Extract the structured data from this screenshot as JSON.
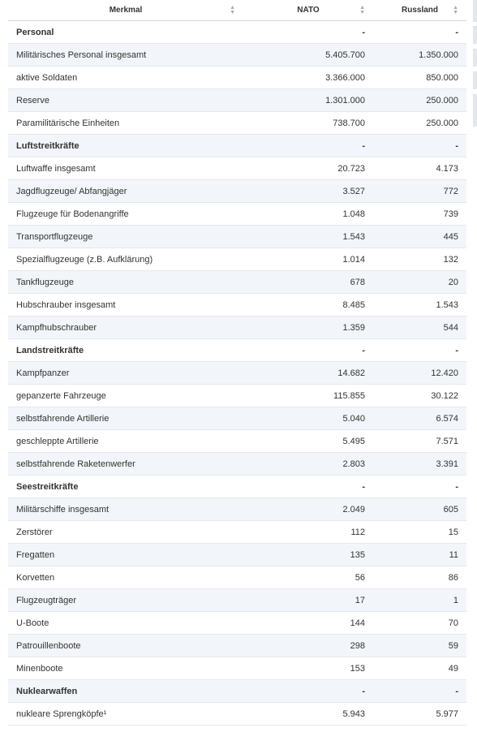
{
  "table": {
    "headers": [
      "Merkmal",
      "NATO",
      "Russland"
    ],
    "rows": [
      {
        "label": "Personal",
        "nato": "-",
        "russland": "-",
        "section": true
      },
      {
        "label": "Militärisches Personal insgesamt",
        "nato": "5.405.700",
        "russland": "1.350.000"
      },
      {
        "label": "aktive Soldaten",
        "nato": "3.366.000",
        "russland": "850.000"
      },
      {
        "label": "Reserve",
        "nato": "1.301.000",
        "russland": "250.000"
      },
      {
        "label": "Paramilitärische Einheiten",
        "nato": "738.700",
        "russland": "250.000"
      },
      {
        "label": "Luftstreitkräfte",
        "nato": "-",
        "russland": "-",
        "section": true
      },
      {
        "label": "Luftwaffe insgesamt",
        "nato": "20.723",
        "russland": "4.173"
      },
      {
        "label": "Jagdflugzeuge/ Abfangjäger",
        "nato": "3.527",
        "russland": "772"
      },
      {
        "label": "Flugzeuge für Bodenangriffe",
        "nato": "1.048",
        "russland": "739"
      },
      {
        "label": "Transportflugzeuge",
        "nato": "1.543",
        "russland": "445"
      },
      {
        "label": "Spezialflugzeuge (z.B. Aufklärung)",
        "nato": "1.014",
        "russland": "132"
      },
      {
        "label": "Tankflugzeuge",
        "nato": "678",
        "russland": "20"
      },
      {
        "label": "Hubschrauber insgesamt",
        "nato": "8.485",
        "russland": "1.543"
      },
      {
        "label": "Kampfhubschrauber",
        "nato": "1.359",
        "russland": "544"
      },
      {
        "label": "Landstreitkräfte",
        "nato": "-",
        "russland": "-",
        "section": true
      },
      {
        "label": "Kampfpanzer",
        "nato": "14.682",
        "russland": "12.420"
      },
      {
        "label": "gepanzerte Fahrzeuge",
        "nato": "115.855",
        "russland": "30.122"
      },
      {
        "label": "selbstfahrende Artillerie",
        "nato": "5.040",
        "russland": "6.574"
      },
      {
        "label": "geschleppte Artillerie",
        "nato": "5.495",
        "russland": "7.571"
      },
      {
        "label": "selbstfahrende Raketenwerfer",
        "nato": "2.803",
        "russland": "3.391"
      },
      {
        "label": "Seestreitkräfte",
        "nato": "-",
        "russland": "-",
        "section": true
      },
      {
        "label": "Militärschiffe insgesamt",
        "nato": "2.049",
        "russland": "605"
      },
      {
        "label": "Zerstörer",
        "nato": "112",
        "russland": "15"
      },
      {
        "label": "Fregatten",
        "nato": "135",
        "russland": "11"
      },
      {
        "label": "Korvetten",
        "nato": "56",
        "russland": "86"
      },
      {
        "label": "Flugzeugträger",
        "nato": "17",
        "russland": "1"
      },
      {
        "label": "U-Boote",
        "nato": "144",
        "russland": "70"
      },
      {
        "label": "Patrouillenboote",
        "nato": "298",
        "russland": "59"
      },
      {
        "label": "Minenboote",
        "nato": "153",
        "russland": "49"
      },
      {
        "label": "Nuklearwaffen",
        "nato": "-",
        "russland": "-",
        "section": true
      },
      {
        "label": "nukleare Sprengköpfe¹",
        "nato": "5.943",
        "russland": "5.977"
      }
    ]
  },
  "colors": {
    "stripe": "#f2f5f9",
    "border": "#e4e8ee",
    "text": "#333333"
  },
  "icons": {
    "sort": "sort-arrows-icon"
  }
}
